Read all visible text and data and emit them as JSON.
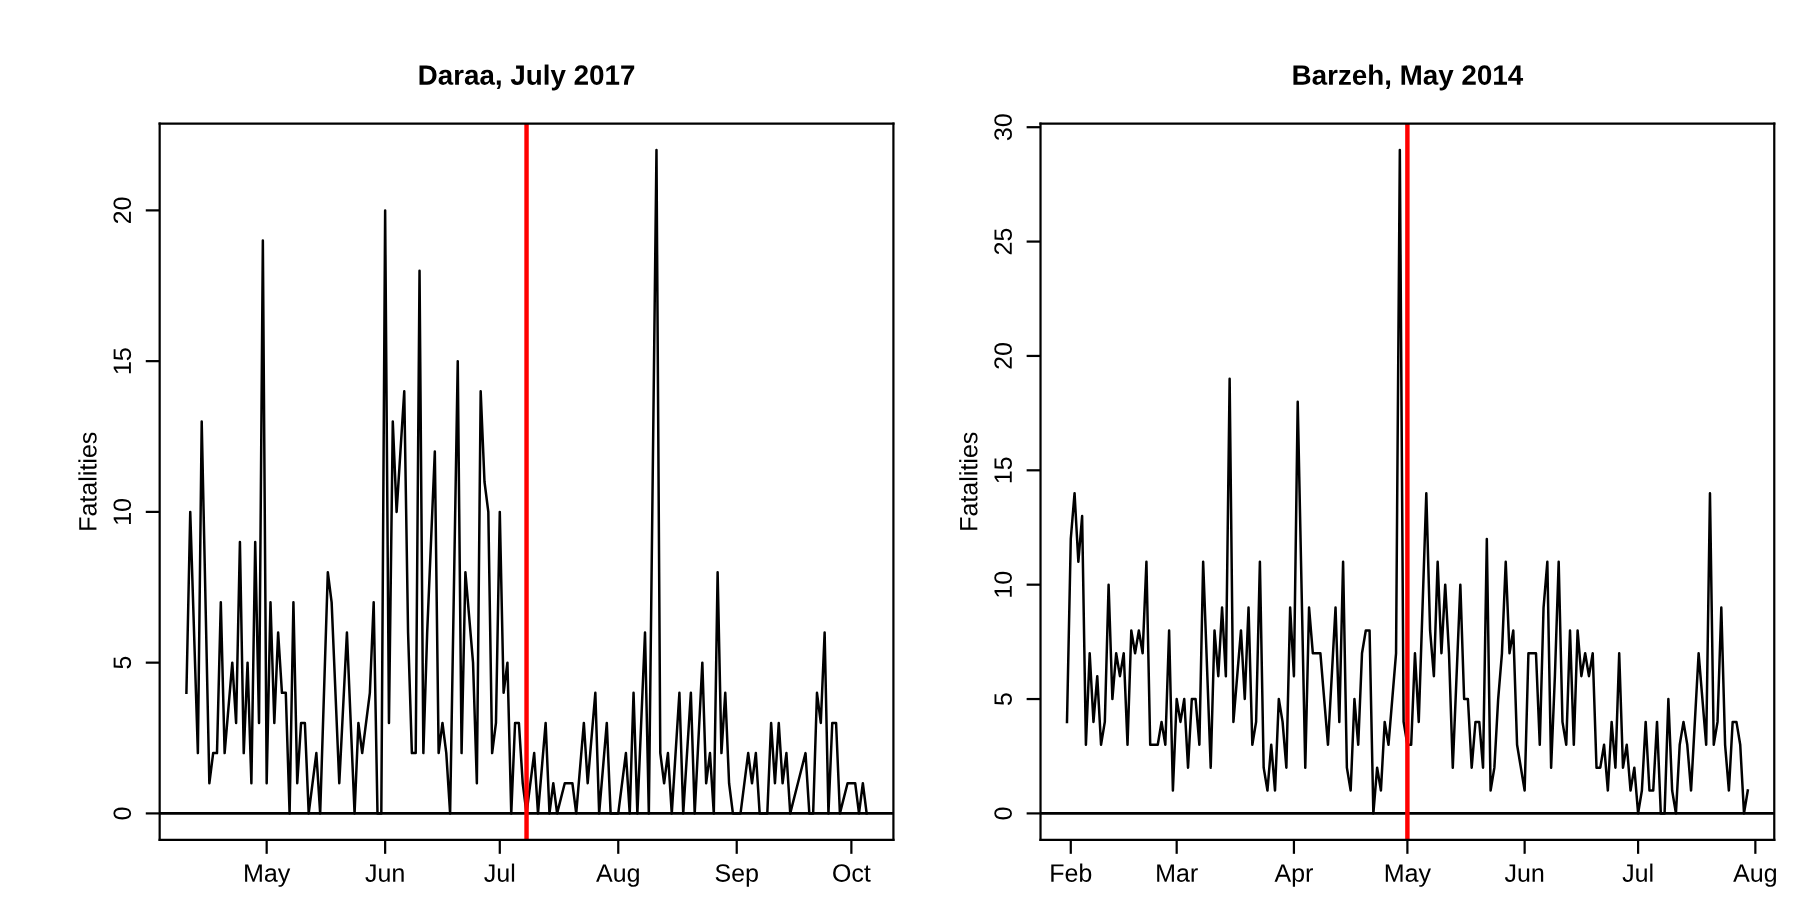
{
  "chart_data": [
    {
      "type": "line",
      "title": "Daraa, July 2017",
      "ylabel": "Fatalities",
      "grid": false,
      "legend": false,
      "marker": "none",
      "line_style": "solid",
      "xlim": [
        "2017-04-03",
        "2017-10-12"
      ],
      "ylim": [
        -0.88,
        22.88
      ],
      "yticks": [
        0,
        5,
        10,
        15,
        20
      ],
      "xticks": [
        {
          "value": "2017-05-01",
          "label": "May"
        },
        {
          "value": "2017-06-01",
          "label": "Jun"
        },
        {
          "value": "2017-07-01",
          "label": "Jul"
        },
        {
          "value": "2017-08-01",
          "label": "Aug"
        },
        {
          "value": "2017-09-01",
          "label": "Sep"
        },
        {
          "value": "2017-10-01",
          "label": "Oct"
        }
      ],
      "ref_lines": [
        {
          "axis": "y",
          "value": 0,
          "color": "#000000"
        },
        {
          "axis": "x",
          "value": "2017-07-08",
          "color": "#ff0000"
        }
      ],
      "series": [
        {
          "color": "#000000",
          "x": [
            "2017-04-10",
            "2017-04-11",
            "2017-04-13",
            "2017-04-14",
            "2017-04-16",
            "2017-04-17",
            "2017-04-18",
            "2017-04-19",
            "2017-04-20",
            "2017-04-22",
            "2017-04-23",
            "2017-04-24",
            "2017-04-25",
            "2017-04-26",
            "2017-04-27",
            "2017-04-28",
            "2017-04-29",
            "2017-04-30",
            "2017-05-01",
            "2017-05-02",
            "2017-05-03",
            "2017-05-04",
            "2017-05-05",
            "2017-05-06",
            "2017-05-07",
            "2017-05-08",
            "2017-05-09",
            "2017-05-10",
            "2017-05-11",
            "2017-05-12",
            "2017-05-14",
            "2017-05-15",
            "2017-05-17",
            "2017-05-18",
            "2017-05-20",
            "2017-05-22",
            "2017-05-24",
            "2017-05-25",
            "2017-05-26",
            "2017-05-28",
            "2017-05-29",
            "2017-05-30",
            "2017-05-31",
            "2017-06-01",
            "2017-06-02",
            "2017-06-03",
            "2017-06-04",
            "2017-06-05",
            "2017-06-06",
            "2017-06-07",
            "2017-06-08",
            "2017-06-09",
            "2017-06-10",
            "2017-06-11",
            "2017-06-12",
            "2017-06-14",
            "2017-06-15",
            "2017-06-16",
            "2017-06-17",
            "2017-06-18",
            "2017-06-20",
            "2017-06-21",
            "2017-06-22",
            "2017-06-24",
            "2017-06-25",
            "2017-06-26",
            "2017-06-27",
            "2017-06-28",
            "2017-06-29",
            "2017-06-30",
            "2017-07-01",
            "2017-07-02",
            "2017-07-03",
            "2017-07-04",
            "2017-07-05",
            "2017-07-06",
            "2017-07-07",
            "2017-07-08",
            "2017-07-10",
            "2017-07-11",
            "2017-07-13",
            "2017-07-14",
            "2017-07-15",
            "2017-07-16",
            "2017-07-18",
            "2017-07-20",
            "2017-07-21",
            "2017-07-23",
            "2017-07-24",
            "2017-07-26",
            "2017-07-27",
            "2017-07-29",
            "2017-07-30",
            "2017-08-01",
            "2017-08-03",
            "2017-08-04",
            "2017-08-05",
            "2017-08-06",
            "2017-08-08",
            "2017-08-09",
            "2017-08-11",
            "2017-08-12",
            "2017-08-13",
            "2017-08-14",
            "2017-08-15",
            "2017-08-17",
            "2017-08-18",
            "2017-08-20",
            "2017-08-21",
            "2017-08-23",
            "2017-08-24",
            "2017-08-25",
            "2017-08-26",
            "2017-08-27",
            "2017-08-28",
            "2017-08-29",
            "2017-08-30",
            "2017-08-31",
            "2017-09-02",
            "2017-09-04",
            "2017-09-05",
            "2017-09-06",
            "2017-09-07",
            "2017-09-09",
            "2017-09-10",
            "2017-09-11",
            "2017-09-12",
            "2017-09-13",
            "2017-09-14",
            "2017-09-15",
            "2017-09-17",
            "2017-09-19",
            "2017-09-20",
            "2017-09-21",
            "2017-09-22",
            "2017-09-23",
            "2017-09-24",
            "2017-09-25",
            "2017-09-26",
            "2017-09-27",
            "2017-09-28",
            "2017-09-30",
            "2017-10-02",
            "2017-10-03",
            "2017-10-04",
            "2017-10-05"
          ],
          "values": [
            4,
            10,
            2,
            13,
            1,
            2,
            2,
            7,
            2,
            5,
            3,
            9,
            2,
            5,
            1,
            9,
            3,
            19,
            1,
            7,
            3,
            6,
            4,
            4,
            0,
            7,
            1,
            3,
            3,
            0,
            2,
            0,
            8,
            7,
            1,
            6,
            0,
            3,
            2,
            4,
            7,
            0,
            0,
            20,
            3,
            13,
            10,
            12,
            14,
            6,
            2,
            2,
            18,
            2,
            6,
            12,
            2,
            3,
            2,
            0,
            15,
            2,
            8,
            5,
            1,
            14,
            11,
            10,
            2,
            3,
            10,
            4,
            5,
            0,
            3,
            3,
            1,
            0,
            2,
            0,
            3,
            0,
            1,
            0,
            1,
            1,
            0,
            3,
            1,
            4,
            0,
            3,
            0,
            0,
            2,
            0,
            4,
            0,
            6,
            0,
            22,
            2,
            1,
            2,
            0,
            4,
            0,
            4,
            0,
            5,
            1,
            2,
            0,
            8,
            2,
            4,
            1,
            0,
            0,
            2,
            1,
            2,
            0,
            0,
            3,
            1,
            3,
            1,
            2,
            0,
            1,
            2,
            0,
            0,
            4,
            3,
            6,
            0,
            3,
            3,
            0,
            1,
            1,
            0,
            1,
            0
          ]
        }
      ]
    },
    {
      "type": "line",
      "title": "Barzeh, May 2014",
      "ylabel": "Fatalities",
      "grid": false,
      "legend": false,
      "marker": "none",
      "line_style": "solid",
      "xlim": [
        "2014-01-24",
        "2014-08-06"
      ],
      "ylim": [
        -1.16,
        30.16
      ],
      "yticks": [
        0,
        5,
        10,
        15,
        20,
        25,
        30
      ],
      "xticks": [
        {
          "value": "2014-02-01",
          "label": "Feb"
        },
        {
          "value": "2014-03-01",
          "label": "Mar"
        },
        {
          "value": "2014-04-01",
          "label": "Apr"
        },
        {
          "value": "2014-05-01",
          "label": "May"
        },
        {
          "value": "2014-06-01",
          "label": "Jun"
        },
        {
          "value": "2014-07-01",
          "label": "Jul"
        },
        {
          "value": "2014-08-01",
          "label": "Aug"
        }
      ],
      "ref_lines": [
        {
          "axis": "y",
          "value": 0,
          "color": "#000000"
        },
        {
          "axis": "x",
          "value": "2014-05-01",
          "color": "#ff0000"
        }
      ],
      "series": [
        {
          "color": "#000000",
          "x": [
            "2014-01-31",
            "2014-02-01",
            "2014-02-02",
            "2014-02-03",
            "2014-02-04",
            "2014-02-05",
            "2014-02-06",
            "2014-02-07",
            "2014-02-08",
            "2014-02-09",
            "2014-02-10",
            "2014-02-11",
            "2014-02-12",
            "2014-02-13",
            "2014-02-14",
            "2014-02-15",
            "2014-02-16",
            "2014-02-17",
            "2014-02-18",
            "2014-02-19",
            "2014-02-20",
            "2014-02-21",
            "2014-02-22",
            "2014-02-24",
            "2014-02-25",
            "2014-02-26",
            "2014-02-27",
            "2014-02-28",
            "2014-03-01",
            "2014-03-02",
            "2014-03-03",
            "2014-03-04",
            "2014-03-05",
            "2014-03-06",
            "2014-03-07",
            "2014-03-08",
            "2014-03-10",
            "2014-03-11",
            "2014-03-12",
            "2014-03-13",
            "2014-03-14",
            "2014-03-15",
            "2014-03-16",
            "2014-03-17",
            "2014-03-18",
            "2014-03-19",
            "2014-03-20",
            "2014-03-21",
            "2014-03-22",
            "2014-03-23",
            "2014-03-24",
            "2014-03-25",
            "2014-03-26",
            "2014-03-27",
            "2014-03-28",
            "2014-03-29",
            "2014-03-30",
            "2014-03-31",
            "2014-04-01",
            "2014-04-02",
            "2014-04-04",
            "2014-04-05",
            "2014-04-06",
            "2014-04-08",
            "2014-04-10",
            "2014-04-12",
            "2014-04-13",
            "2014-04-14",
            "2014-04-15",
            "2014-04-16",
            "2014-04-17",
            "2014-04-18",
            "2014-04-19",
            "2014-04-20",
            "2014-04-21",
            "2014-04-22",
            "2014-04-23",
            "2014-04-24",
            "2014-04-25",
            "2014-04-26",
            "2014-04-27",
            "2014-04-28",
            "2014-04-29",
            "2014-04-30",
            "2014-05-01",
            "2014-05-02",
            "2014-05-03",
            "2014-05-04",
            "2014-05-06",
            "2014-05-07",
            "2014-05-08",
            "2014-05-09",
            "2014-05-10",
            "2014-05-11",
            "2014-05-12",
            "2014-05-13",
            "2014-05-15",
            "2014-05-16",
            "2014-05-17",
            "2014-05-18",
            "2014-05-19",
            "2014-05-20",
            "2014-05-21",
            "2014-05-22",
            "2014-05-23",
            "2014-05-24",
            "2014-05-25",
            "2014-05-26",
            "2014-05-27",
            "2014-05-28",
            "2014-05-29",
            "2014-05-30",
            "2014-05-31",
            "2014-06-01",
            "2014-06-02",
            "2014-06-04",
            "2014-06-05",
            "2014-06-06",
            "2014-06-07",
            "2014-06-08",
            "2014-06-09",
            "2014-06-10",
            "2014-06-11",
            "2014-06-12",
            "2014-06-13",
            "2014-06-14",
            "2014-06-15",
            "2014-06-16",
            "2014-06-17",
            "2014-06-18",
            "2014-06-19",
            "2014-06-20",
            "2014-06-21",
            "2014-06-22",
            "2014-06-23",
            "2014-06-24",
            "2014-06-25",
            "2014-06-26",
            "2014-06-27",
            "2014-06-28",
            "2014-06-29",
            "2014-06-30",
            "2014-07-01",
            "2014-07-02",
            "2014-07-03",
            "2014-07-04",
            "2014-07-05",
            "2014-07-06",
            "2014-07-07",
            "2014-07-08",
            "2014-07-09",
            "2014-07-10",
            "2014-07-11",
            "2014-07-12",
            "2014-07-13",
            "2014-07-14",
            "2014-07-15",
            "2014-07-16",
            "2014-07-17",
            "2014-07-18",
            "2014-07-19",
            "2014-07-20",
            "2014-07-21",
            "2014-07-22",
            "2014-07-23",
            "2014-07-24",
            "2014-07-25",
            "2014-07-26",
            "2014-07-27",
            "2014-07-28",
            "2014-07-29",
            "2014-07-30"
          ],
          "values": [
            4,
            12,
            14,
            11,
            13,
            3,
            7,
            4,
            6,
            3,
            4,
            10,
            5,
            7,
            6,
            7,
            3,
            8,
            7,
            8,
            7,
            11,
            3,
            3,
            4,
            3,
            8,
            1,
            5,
            4,
            5,
            2,
            5,
            5,
            3,
            11,
            2,
            8,
            6,
            9,
            6,
            19,
            4,
            6,
            8,
            5,
            9,
            3,
            4,
            11,
            2,
            1,
            3,
            1,
            5,
            4,
            2,
            9,
            6,
            18,
            2,
            9,
            7,
            7,
            3,
            9,
            4,
            11,
            2,
            1,
            5,
            3,
            7,
            8,
            8,
            0,
            2,
            1,
            4,
            3,
            5,
            7,
            29,
            4,
            3,
            3,
            7,
            4,
            14,
            8,
            6,
            11,
            7,
            10,
            7,
            2,
            10,
            5,
            5,
            2,
            4,
            4,
            2,
            12,
            1,
            2,
            5,
            7,
            11,
            7,
            8,
            3,
            2,
            1,
            7,
            7,
            3,
            9,
            11,
            2,
            6,
            11,
            4,
            3,
            8,
            3,
            8,
            6,
            7,
            6,
            7,
            2,
            2,
            3,
            1,
            4,
            2,
            7,
            2,
            3,
            1,
            2,
            0,
            1,
            4,
            1,
            1,
            4,
            0,
            0,
            5,
            1,
            0,
            3,
            4,
            3,
            1,
            4,
            7,
            5,
            3,
            14,
            3,
            4,
            9,
            3,
            1,
            4,
            4,
            3,
            0,
            1
          ]
        }
      ]
    }
  ]
}
